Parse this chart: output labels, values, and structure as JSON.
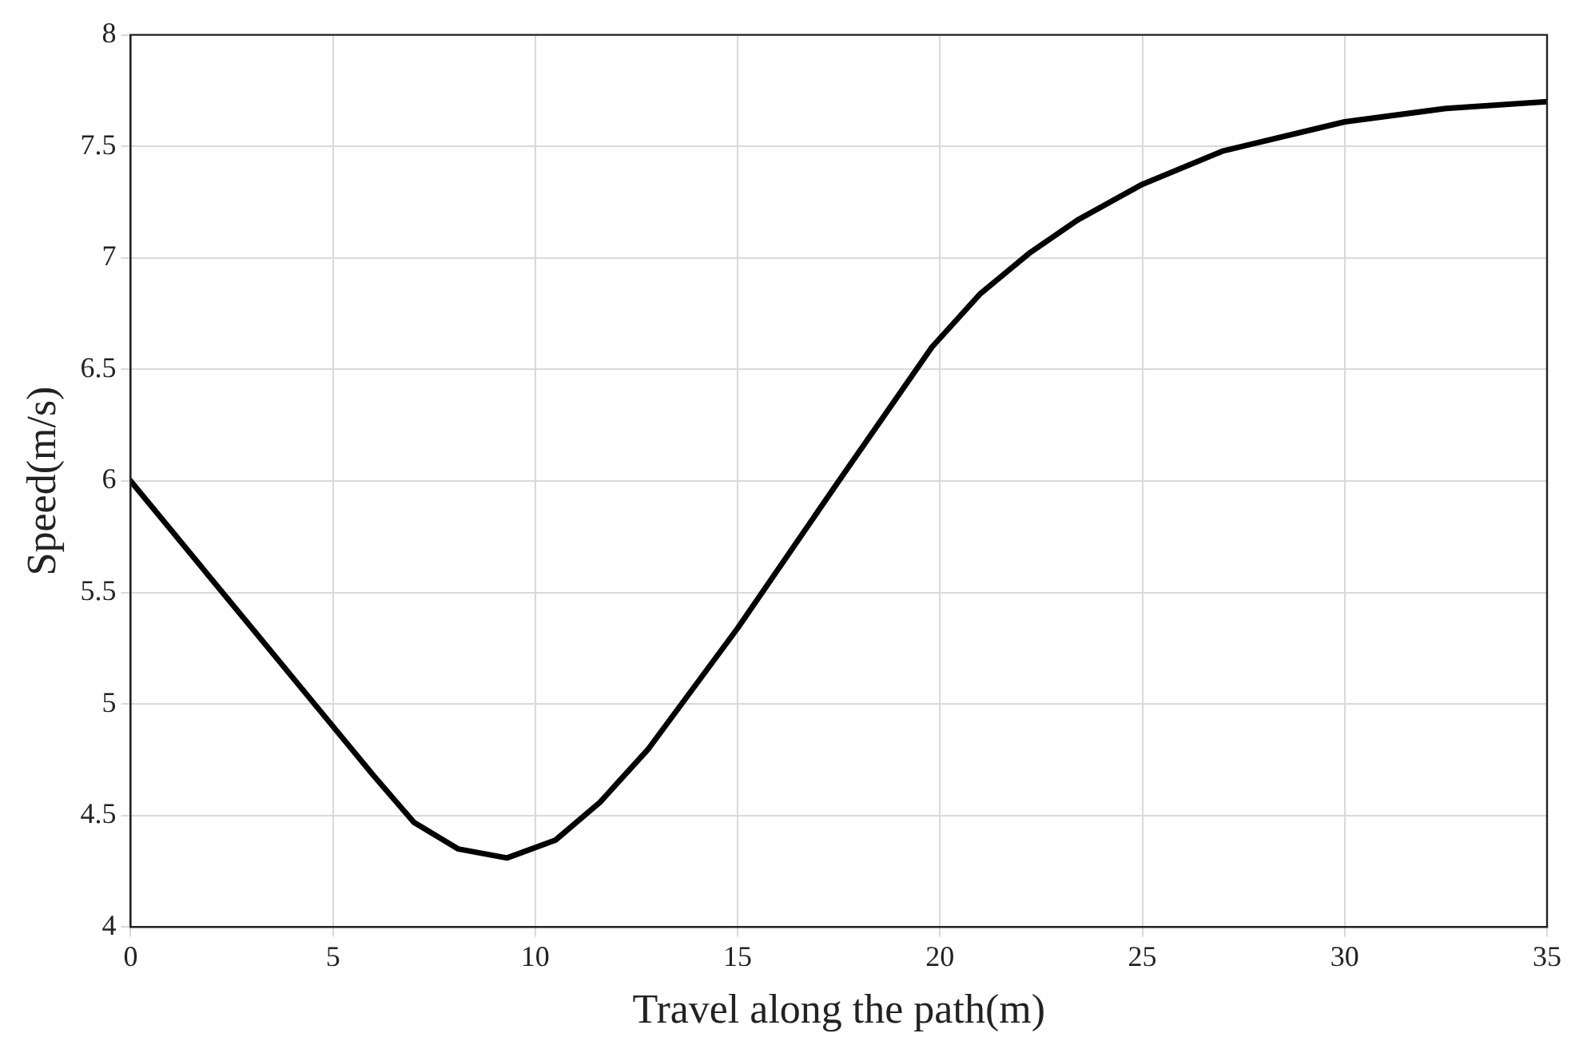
{
  "chart_data": {
    "type": "line",
    "xlabel": "Travel along the path(m)",
    "ylabel": "Speed(m/s)",
    "series": [
      {
        "color": "#000000",
        "x": [
          0,
          5,
          6,
          7,
          8.1,
          9.3,
          10.5,
          11.6,
          12.8,
          15,
          17.5,
          19.8,
          21,
          22.2,
          23.4,
          25,
          27,
          30,
          32.5,
          35
        ],
        "values": [
          6,
          4.9,
          4.68,
          4.47,
          4.35,
          4.31,
          4.39,
          4.56,
          4.8,
          5.34,
          6.0,
          6.6,
          6.84,
          7.02,
          7.17,
          7.33,
          7.48,
          7.61,
          7.67,
          7.7
        ]
      }
    ],
    "xlim": [
      0,
      35
    ],
    "xticks": [
      0,
      5,
      10,
      15,
      20,
      25,
      30,
      35
    ],
    "ylim": [
      4,
      8
    ],
    "yticks": [
      4,
      4.5,
      5,
      5.5,
      6,
      6.5,
      7,
      7.5,
      8
    ],
    "grid": true,
    "legend": false,
    "marker": "none",
    "line_style": "solid"
  }
}
